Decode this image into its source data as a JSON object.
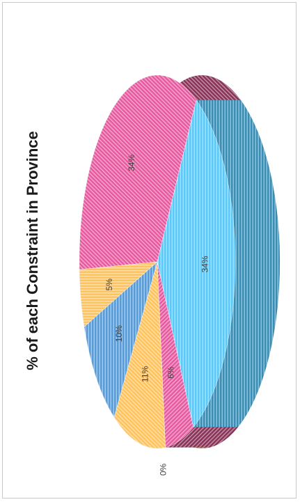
{
  "chart_data": {
    "type": "pie",
    "title": "% of each Constraint in Province",
    "orientation": "rotated-90-ccw",
    "style": "3d-exploded",
    "slices": [
      {
        "label": "34%",
        "value": 34,
        "color": "#e75aa0",
        "side_color": "#8a3358"
      },
      {
        "label": "5%",
        "value": 5,
        "color": "#ffc35c",
        "side_color": "#c48a33"
      },
      {
        "label": "10%",
        "value": 10,
        "color": "#5b9bd5",
        "side_color": "#3b6a99"
      },
      {
        "label": "11%",
        "value": 11,
        "color": "#ffc35c",
        "side_color": "#c48a33"
      },
      {
        "label": "0%",
        "value": 0,
        "color": "#9e9e9e",
        "side_color": "#6e6e6e"
      },
      {
        "label": "6%",
        "value": 6,
        "color": "#e75aa0",
        "side_color": "#8a3358"
      },
      {
        "label": "34%",
        "value": 34,
        "color": "#5cc8f5",
        "side_color": "#3b8db2"
      }
    ]
  }
}
